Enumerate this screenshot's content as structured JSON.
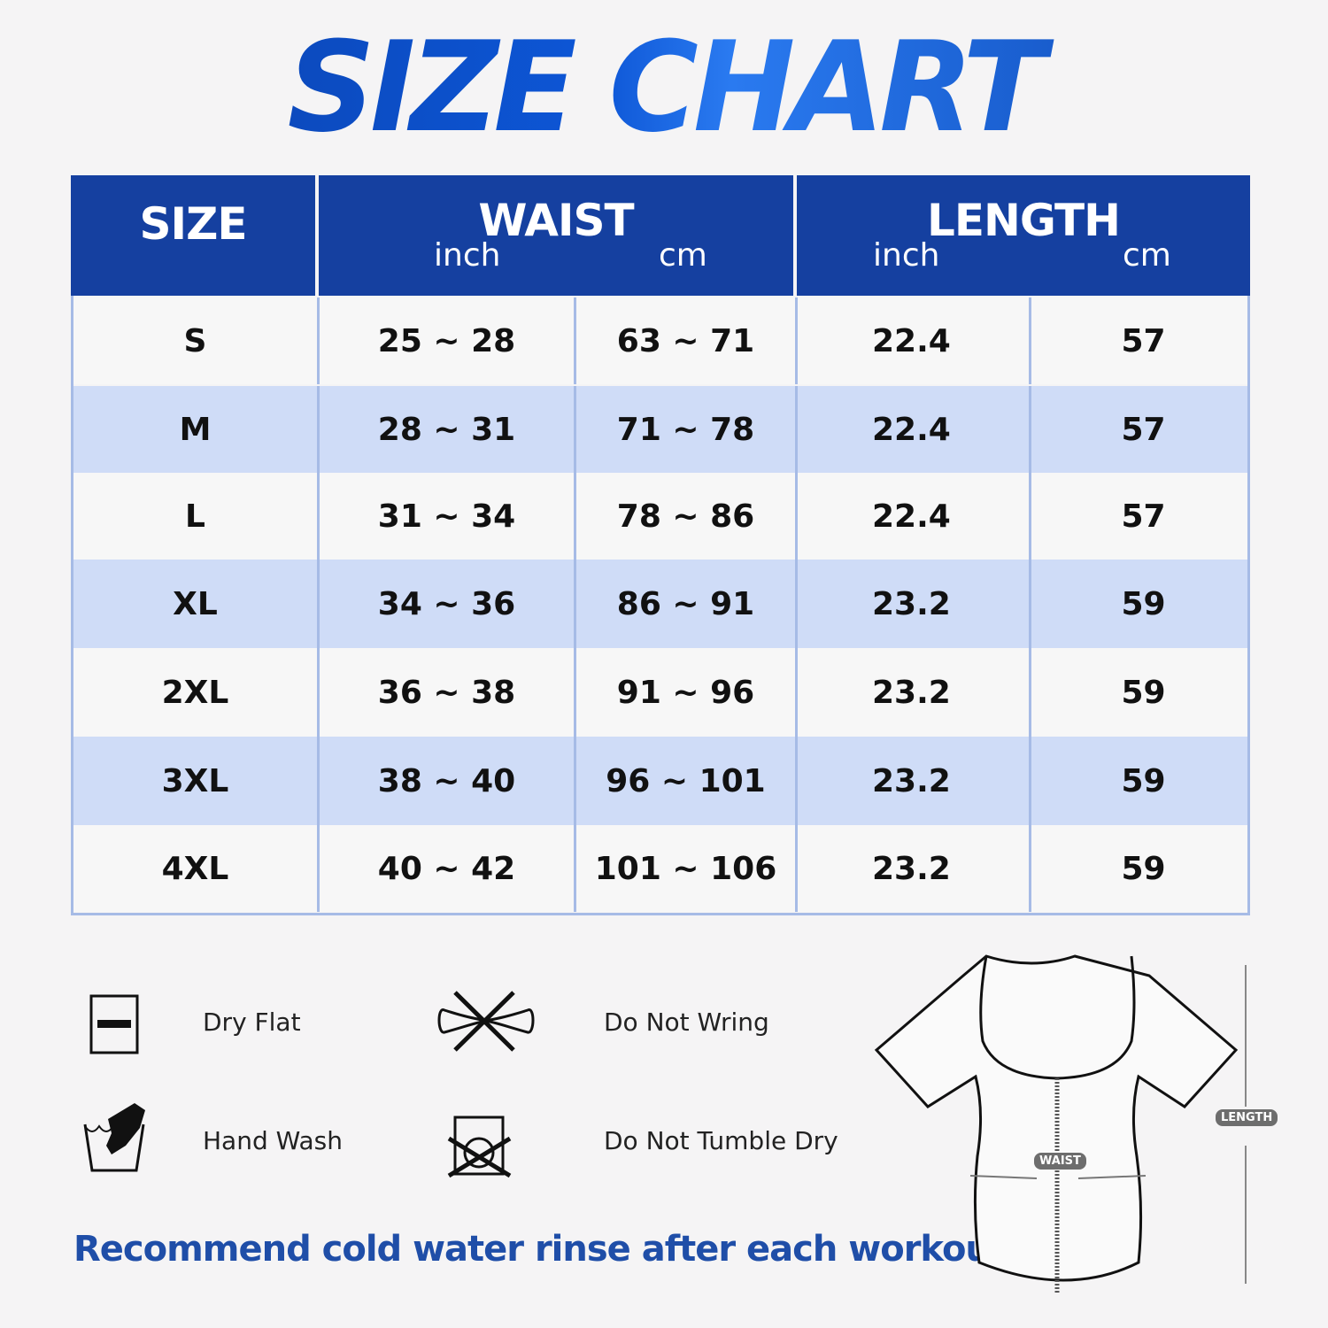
{
  "title": "SIZE CHART",
  "colors": {
    "header_bg": "#1540a0",
    "row_alt": "#cfdcf7",
    "row_plain": "#f7f7f7",
    "title": "#0b4cc0",
    "note": "#1f4ea8"
  },
  "table": {
    "headers": {
      "size": "SIZE",
      "waist": "WAIST",
      "length": "LENGTH",
      "waist_inch": "inch",
      "waist_cm": "cm",
      "length_inch": "inch",
      "length_cm": "cm"
    },
    "rows": [
      [
        "S",
        "25 ~ 28",
        "63 ~ 71",
        "22.4",
        "57"
      ],
      [
        "M",
        "28 ~ 31",
        "71 ~ 78",
        "22.4",
        "57"
      ],
      [
        "L",
        "31 ~ 34",
        "78 ~ 86",
        "22.4",
        "57"
      ],
      [
        "XL",
        "34 ~ 36",
        "86 ~ 91",
        "23.2",
        "59"
      ],
      [
        "2XL",
        "36 ~ 38",
        "91 ~ 96",
        "23.2",
        "59"
      ],
      [
        "3XL",
        "38 ~ 40",
        "96 ~ 101",
        "23.2",
        "59"
      ],
      [
        "4XL",
        "40 ~ 42",
        "101 ~ 106",
        "23.2",
        "59"
      ]
    ]
  },
  "care": [
    {
      "label": "Dry Flat",
      "icon": "dry-flat-icon"
    },
    {
      "label": "Do Not Wring",
      "icon": "do-not-wring-icon"
    },
    {
      "label": "Hand Wash",
      "icon": "hand-wash-icon"
    },
    {
      "label": "Do Not Tumble Dry",
      "icon": "do-not-tumble-dry-icon"
    }
  ],
  "note": "Recommend cold water rinse after each workout.",
  "diagram": {
    "waist_tag": "WAIST",
    "length_tag": "LENGTH"
  }
}
